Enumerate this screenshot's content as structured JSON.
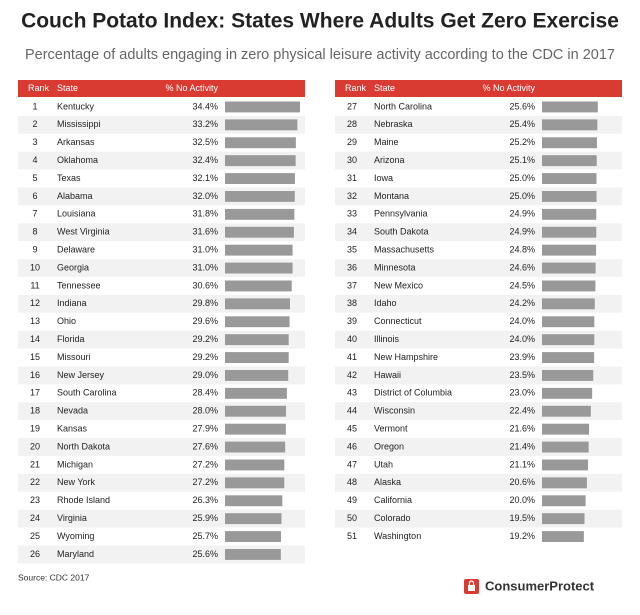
{
  "title": "Couch Potato Index: States Where Adults Get Zero Exercise",
  "subtitle": "Percentage of adults engaging in zero physical leisure activity according to the CDC in 2017",
  "source": "Source: CDC 2017",
  "brand": "ConsumerProtect",
  "chart_data": [
    {
      "type": "table-bar",
      "columns": [
        "Rank",
        "State",
        "% No Activity"
      ],
      "color": "#999999",
      "header_color": "#d93a32",
      "ranks": [
        1,
        2,
        3,
        4,
        5,
        6,
        7,
        8,
        9,
        10,
        11,
        12,
        13,
        14,
        15,
        16,
        17,
        18,
        19,
        20,
        21,
        22,
        23,
        24,
        25,
        26
      ],
      "categories": [
        "Kentucky",
        "Mississippi",
        "Arkansas",
        "Oklahoma",
        "Texas",
        "Alabama",
        "Louisiana",
        "West Virginia",
        "Delaware",
        "Georgia",
        "Tennessee",
        "Indiana",
        "Ohio",
        "Florida",
        "Missouri",
        "New Jersey",
        "South Carolina",
        "Nevada",
        "Kansas",
        "North Dakota",
        "Michigan",
        "New York",
        "Rhode Island",
        "Virginia",
        "Wyoming",
        "Maryland"
      ],
      "values": [
        34.4,
        33.2,
        32.5,
        32.4,
        32.1,
        32.0,
        31.8,
        31.6,
        31.0,
        31.0,
        30.6,
        29.8,
        29.6,
        29.2,
        29.2,
        29.0,
        28.4,
        28.0,
        27.9,
        27.6,
        27.2,
        27.2,
        26.3,
        25.9,
        25.7,
        25.6
      ],
      "value_labels": [
        "34.4%",
        "33.2%",
        "32.5%",
        "32.4%",
        "32.1%",
        "32.0%",
        "31.8%",
        "31.6%",
        "31.0%",
        "31.0%",
        "30.6%",
        "29.8%",
        "29.6%",
        "29.2%",
        "29.2%",
        "29.0%",
        "28.4%",
        "28.0%",
        "27.9%",
        "27.6%",
        "27.2%",
        "27.2%",
        "26.3%",
        "25.9%",
        "25.7%",
        "25.6%"
      ]
    },
    {
      "type": "table-bar",
      "columns": [
        "Rank",
        "State",
        "% No Activity"
      ],
      "color": "#999999",
      "header_color": "#d93a32",
      "ranks": [
        27,
        28,
        29,
        30,
        31,
        32,
        33,
        34,
        35,
        36,
        37,
        38,
        39,
        40,
        41,
        42,
        43,
        44,
        45,
        46,
        47,
        48,
        49,
        50,
        51
      ],
      "categories": [
        "North Carolina",
        "Nebraska",
        "Maine",
        "Arizona",
        "Iowa",
        "Montana",
        "Pennsylvania",
        "South Dakota",
        "Massachusetts",
        "Minnesota",
        "New Mexico",
        "Idaho",
        "Connecticut",
        "Illinois",
        "New Hampshire",
        "Hawaii",
        "District of Columbia",
        "Wisconsin",
        "Vermont",
        "Oregon",
        "Utah",
        "Alaska",
        "California",
        "Colorado",
        "Washington"
      ],
      "values": [
        25.6,
        25.4,
        25.2,
        25.1,
        25.0,
        25.0,
        24.9,
        24.9,
        24.8,
        24.6,
        24.5,
        24.2,
        24.0,
        24.0,
        23.9,
        23.5,
        23.0,
        22.4,
        21.6,
        21.4,
        21.1,
        20.6,
        20.0,
        19.5,
        19.2
      ],
      "value_labels": [
        "25.6%",
        "25.4%",
        "25.2%",
        "25.1%",
        "25.0%",
        "25.0%",
        "24.9%",
        "24.9%",
        "24.8%",
        "24.6%",
        "24.5%",
        "24.2%",
        "24.0%",
        "24.0%",
        "23.9%",
        "23.5%",
        "23.0%",
        "22.4%",
        "21.6%",
        "21.4%",
        "21.1%",
        "20.6%",
        "20.0%",
        "19.5%",
        "19.2%"
      ]
    }
  ]
}
